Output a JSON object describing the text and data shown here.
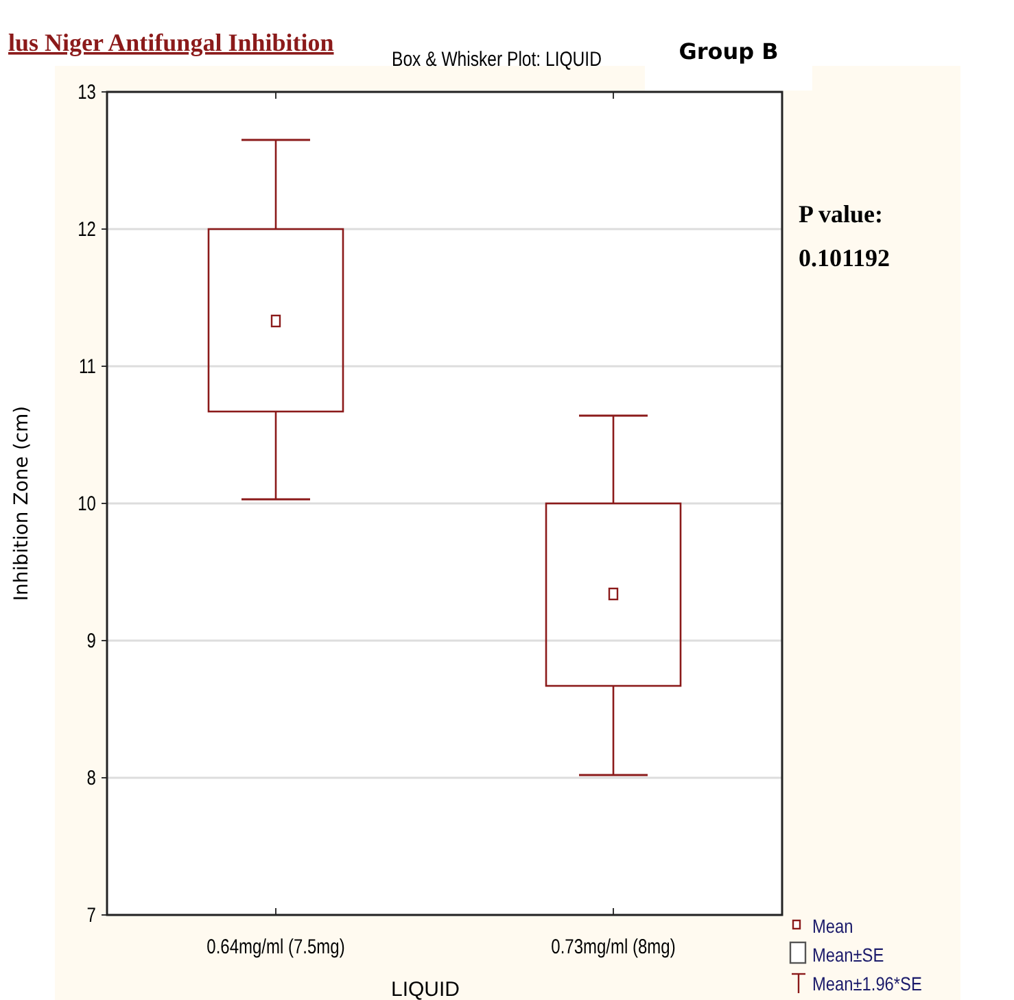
{
  "chart_data": {
    "type": "box",
    "title": "lus Niger Antifungal Inhibition",
    "subtitle": "Box & Whisker Plot:  LIQUID",
    "xlabel": "LIQUID",
    "ylabel": "Inhibition Zone (cm)",
    "categories": [
      "0.64mg/ml (7.5mg)",
      "0.73mg/ml (8mg)"
    ],
    "boxes": [
      {
        "low": 10.03,
        "q1": 10.67,
        "median": 11.33,
        "q3": 12.0,
        "high": 12.65
      },
      {
        "low": 8.02,
        "q1": 8.67,
        "median": 9.34,
        "q3": 10.0,
        "high": 10.64
      }
    ],
    "color": "#8b1a1a",
    "ylim": [
      7,
      13
    ],
    "yticks": [
      7,
      8,
      9,
      10,
      11,
      12,
      13
    ],
    "grid": "y",
    "annotations": [
      "Group B",
      "P value:",
      "0.101192",
      "Mean",
      "Mean±SE",
      "Mean±1.96*SE"
    ]
  }
}
